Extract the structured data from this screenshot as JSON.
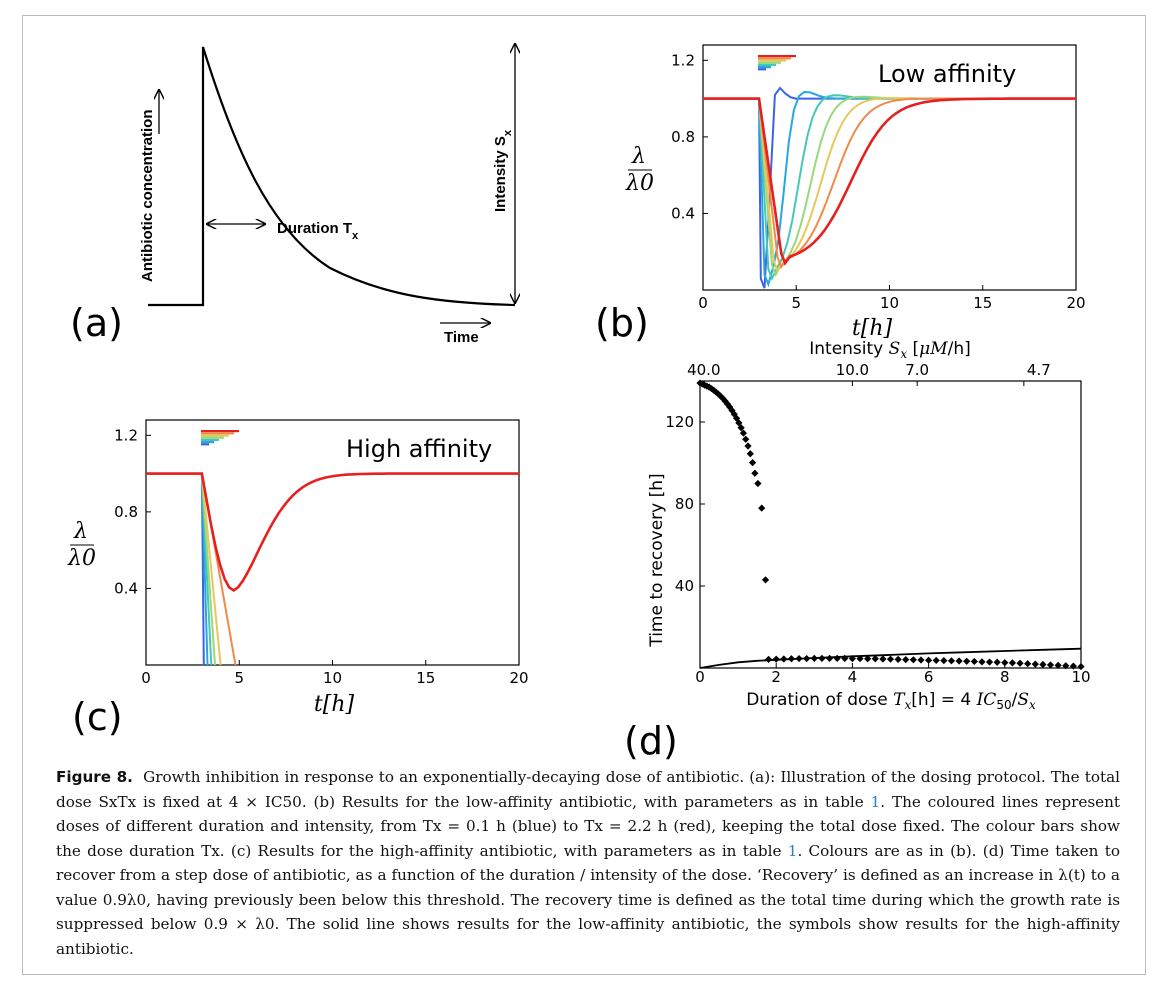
{
  "panels": {
    "a": {
      "letter": "(a)",
      "ylabel": "Antibiotic concentration",
      "duration_label": "Duration T",
      "duration_sub": "x",
      "intensity_label": "Intensity S",
      "intensity_sub": "x",
      "time_label": "Time"
    },
    "b": {
      "letter": "(b)",
      "annotation": "Low affinity"
    },
    "c": {
      "letter": "(c)",
      "annotation": "High affinity"
    },
    "d": {
      "letter": "(d)",
      "top_label": "Intensity S_x [μM/h]",
      "top_ticks": [
        "40.0",
        "10.0",
        "7.0",
        "4.7"
      ],
      "ylabel": "Time to recovery [h]",
      "xlabel": "Duration of dose T_x[h] = 4 IC50/S_x",
      "xticks": [
        "0",
        "2",
        "4",
        "6",
        "8",
        "10"
      ],
      "yticks": [
        "40",
        "80",
        "120"
      ]
    },
    "lambda_ylabel_num": "λ",
    "lambda_ylabel_den": "λ0",
    "bc_xlabel": "t[h]",
    "bc_xticks": [
      "0",
      "5",
      "10",
      "15",
      "20"
    ],
    "bc_yticks": [
      "0.4",
      "0.8",
      "1.2"
    ]
  },
  "caption": {
    "label": "Figure 8.",
    "text_1": "Growth inhibition in response to an exponentially-decaying dose of antibiotic. (a): Illustration of the dosing protocol. The total dose S",
    "text_2": "xT",
    "text_3": "x is fixed at 4 × IC50. (b) Results for the low-affinity antibiotic, with parameters as in table ",
    "ref_1": "1",
    "text_4": ". The coloured lines represent doses of different duration and intensity, from Tx = 0.1 h (blue) to Tx = 2.2 h (red), keeping the total dose fixed. The colour bars show the dose duration Tx. (c) Results for the high-affinity antibiotic, with parameters as in table ",
    "ref_2": "1",
    "text_5": ". Colours are as in (b). (d) Time taken to recover from a step dose of antibiotic, as a function of the duration / intensity of the dose. ‘Recovery’ is defined as an increase in λ(t) to a value 0.9λ0, having previously been below this threshold. The recovery time is defined as the total time during which the growth rate is suppressed below 0.9 × λ0. The solid line shows results for the low-affinity antibiotic, the symbols show results for the high-affinity antibiotic."
  },
  "chart_data": [
    {
      "panel": "a",
      "type": "line",
      "xlabel": "Time",
      "ylabel": "Antibiotic concentration",
      "description_values": {
        "step_time": 0.25,
        "decay": "exponential"
      }
    },
    {
      "panel": "b",
      "type": "line",
      "xlabel": "t[h]",
      "ylabel": "λ/λ0",
      "xlim": [
        0,
        20
      ],
      "ylim": [
        0,
        1.28
      ],
      "xticks": [
        0,
        5,
        10,
        15,
        20
      ],
      "yticks": [
        0.4,
        0.8,
        1.2
      ],
      "baseline": 1.0,
      "dose_start": 3.0,
      "annotation": "Low affinity",
      "series": [
        {
          "color": "#3b62e8",
          "min": 0.01,
          "min_t": 3.3,
          "peak": 1.07,
          "peak_t": 3.9
        },
        {
          "color": "#27a6e0",
          "min": 0.03,
          "min_t": 3.5,
          "peak": 1.05,
          "peak_t": 5.2
        },
        {
          "color": "#45c9b4",
          "min": 0.06,
          "min_t": 3.7,
          "peak": 1.03,
          "peak_t": 6.5
        },
        {
          "color": "#9ad87c",
          "min": 0.08,
          "min_t": 3.9,
          "peak": 1.02,
          "peak_t": 7.6
        },
        {
          "color": "#e8c85a",
          "min": 0.1,
          "min_t": 4.0,
          "peak": 1.01,
          "peak_t": 8.6
        },
        {
          "color": "#f08a4a",
          "min": 0.12,
          "min_t": 4.2,
          "peak": 1.005,
          "peak_t": 9.8
        },
        {
          "color": "#e62020",
          "min": 0.14,
          "min_t": 4.4,
          "peak": 1.0,
          "peak_t": 11.5
        }
      ]
    },
    {
      "panel": "c",
      "type": "line",
      "xlabel": "t[h]",
      "ylabel": "λ/λ0",
      "xlim": [
        0,
        20
      ],
      "ylim": [
        0,
        1.28
      ],
      "xticks": [
        0,
        5,
        10,
        15,
        20
      ],
      "yticks": [
        0.4,
        0.8,
        1.2
      ],
      "annotation": "High affinity",
      "series": [
        {
          "color": "#3b62e8",
          "end_t": 3.1
        },
        {
          "color": "#27a6e0",
          "end_t": 3.3
        },
        {
          "color": "#45c9b4",
          "end_t": 3.5
        },
        {
          "color": "#9ad87c",
          "end_t": 3.7
        },
        {
          "color": "#e8c85a",
          "end_t": 4.0
        },
        {
          "color": "#f08a4a",
          "end_t": 4.8
        },
        {
          "color": "#e62020",
          "min": 0.39,
          "min_t": 4.7,
          "recover_t": 10
        }
      ]
    },
    {
      "panel": "d",
      "type": "scatter",
      "xlabel": "Duration of dose T_x[h] = 4 IC50/S_x",
      "ylabel": "Time to recovery [h]",
      "top_xlabel": "Intensity S_x [μM/h]",
      "xlim": [
        0,
        10
      ],
      "ylim": [
        0,
        140
      ],
      "xticks": [
        0,
        2,
        4,
        6,
        8,
        10
      ],
      "yticks": [
        40,
        80,
        120
      ],
      "top_ticks": [
        {
          "label": "40.0",
          "x": 0.1
        },
        {
          "label": "10.0",
          "x": 4.0
        },
        {
          "label": "7.0",
          "x": 5.7
        },
        {
          "label": "4.7",
          "x": 8.5
        }
      ],
      "series": [
        {
          "name": "",
          "style": "markers",
          "x": [
            0.0,
            0.06,
            0.12,
            0.18,
            0.24,
            0.3,
            0.36,
            0.42,
            0.48,
            0.54,
            0.6,
            0.66,
            0.72,
            0.78,
            0.84,
            0.9,
            0.96,
            1.02,
            1.08,
            1.14,
            1.2,
            1.26,
            1.32,
            1.38,
            1.44,
            1.52,
            1.62,
            1.72
          ],
          "y": [
            139,
            138.5,
            138,
            137.5,
            137,
            136.3,
            135.5,
            134.6,
            133.7,
            132.6,
            131.5,
            130.2,
            128.8,
            127.3,
            125.6,
            123.8,
            121.8,
            119.6,
            117.2,
            114.6,
            111.6,
            108.3,
            104.5,
            100.2,
            95,
            90,
            78,
            43
          ]
        },
        {
          "name": "",
          "style": "markers",
          "x": [
            1.8,
            2.0,
            2.2,
            2.4,
            2.6,
            2.8,
            3.0,
            3.2,
            3.4,
            3.6,
            3.8,
            4.0,
            4.2,
            4.4,
            4.6,
            4.8,
            5.0,
            5.2,
            5.4,
            5.6,
            5.8,
            6.0,
            6.2,
            6.4,
            6.6,
            6.8,
            7.0,
            7.2,
            7.4,
            7.6,
            7.8,
            8.0,
            8.2,
            8.4,
            8.6,
            8.8,
            9.0,
            9.2,
            9.4,
            9.6,
            9.8,
            10.0
          ],
          "y": [
            4.2,
            4.3,
            4.4,
            4.5,
            4.6,
            4.6,
            4.7,
            4.7,
            4.7,
            4.7,
            4.7,
            4.6,
            4.6,
            4.5,
            4.5,
            4.4,
            4.3,
            4.2,
            4.1,
            4.0,
            3.9,
            3.8,
            3.7,
            3.6,
            3.5,
            3.4,
            3.3,
            3.2,
            3.0,
            2.9,
            2.8,
            2.6,
            2.5,
            2.3,
            2.1,
            1.9,
            1.7,
            1.5,
            1.3,
            1.1,
            0.9,
            0.7
          ]
        },
        {
          "name": "",
          "style": "line",
          "x": [
            0,
            0.5,
            1,
            1.5,
            2,
            3,
            4,
            5,
            6,
            7,
            8,
            9,
            10
          ],
          "y": [
            0,
            1.5,
            2.8,
            3.5,
            4.0,
            4.9,
            5.7,
            6.4,
            7.1,
            7.7,
            8.3,
            8.9,
            9.4
          ]
        }
      ]
    }
  ]
}
